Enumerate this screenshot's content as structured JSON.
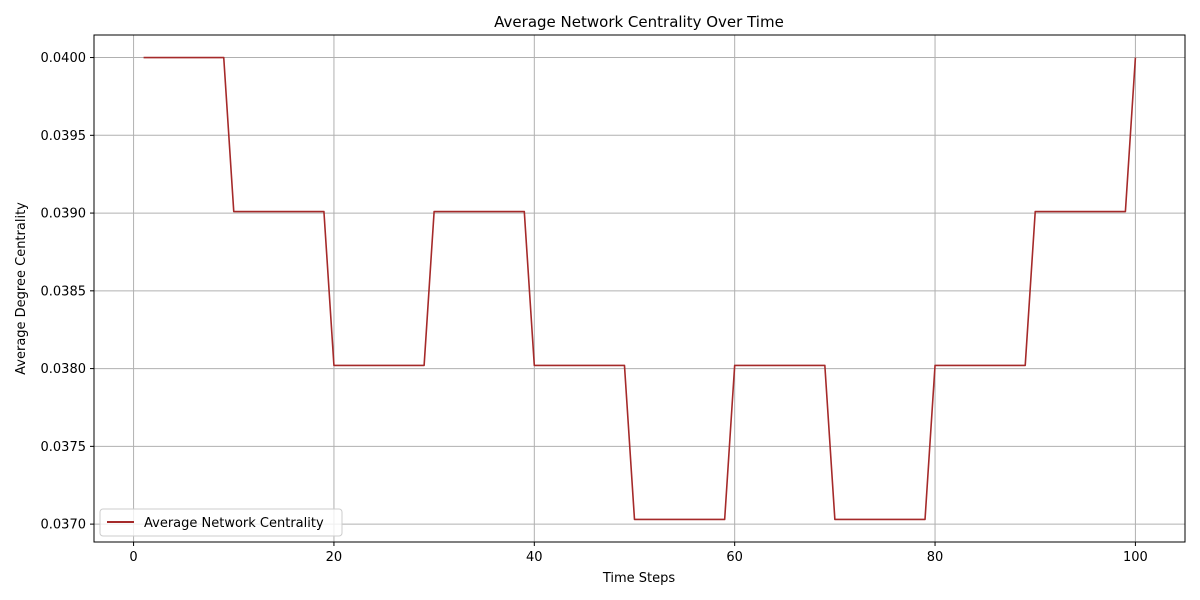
{
  "chart_data": {
    "type": "line",
    "title": "Average Network Centrality Over Time",
    "xlabel": "Time Steps",
    "ylabel": "Average Degree Centrality",
    "xlim": [
      -3.95,
      104.95
    ],
    "ylim": [
      0.036885,
      0.040145
    ],
    "x_ticks": [
      0,
      20,
      40,
      60,
      80,
      100
    ],
    "x_tick_labels": [
      "0",
      "20",
      "40",
      "60",
      "80",
      "100"
    ],
    "y_ticks": [
      0.037,
      0.0375,
      0.038,
      0.0385,
      0.039,
      0.0395,
      0.04
    ],
    "y_tick_labels": [
      "0.0370",
      "0.0375",
      "0.0380",
      "0.0385",
      "0.0390",
      "0.0395",
      "0.0400"
    ],
    "grid": true,
    "legend_position": "lower-left",
    "series": [
      {
        "name": "Average Network Centrality",
        "color": "#a52a2a",
        "x": [
          1,
          9,
          10,
          19,
          20,
          29,
          30,
          39,
          40,
          49,
          50,
          59,
          60,
          69,
          70,
          79,
          80,
          89,
          90,
          99,
          100
        ],
        "y": [
          0.04,
          0.04,
          0.03901,
          0.03901,
          0.03802,
          0.03802,
          0.03901,
          0.03901,
          0.03802,
          0.03802,
          0.03703,
          0.03703,
          0.03802,
          0.03802,
          0.03703,
          0.03703,
          0.03802,
          0.03802,
          0.03901,
          0.03901,
          0.04
        ]
      }
    ]
  }
}
